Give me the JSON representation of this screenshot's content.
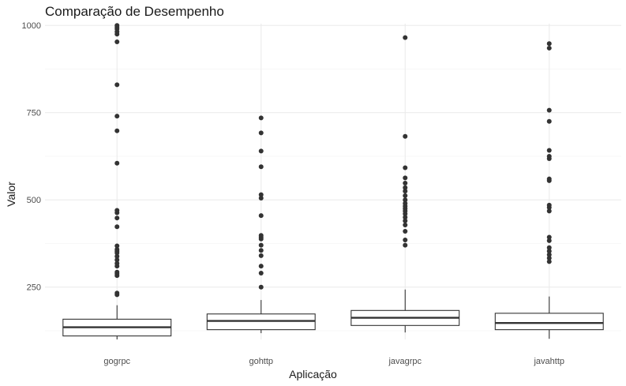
{
  "chart_data": {
    "type": "boxplot",
    "title": "Comparação de Desempenho",
    "xlabel": "Aplicação",
    "ylabel": "Valor",
    "categories": [
      "gogrpc",
      "gohttp",
      "javagrpc",
      "javahttp"
    ],
    "yticks": [
      250,
      500,
      750,
      1000
    ],
    "ylim": [
      100,
      1005
    ],
    "grid": true,
    "boxes": [
      {
        "category": "gogrpc",
        "whisker_low": 100,
        "q1": 110,
        "median": 135,
        "q3": 158,
        "whisker_high": 198,
        "outliers": [
          228,
          233,
          283,
          288,
          293,
          310,
          318,
          328,
          338,
          348,
          353,
          358,
          368,
          423,
          448,
          463,
          470,
          605,
          698,
          740,
          830,
          953,
          975,
          982,
          990,
          995,
          1000
        ]
      },
      {
        "category": "gohttp",
        "whisker_low": 118,
        "q1": 128,
        "median": 153,
        "q3": 173,
        "whisker_high": 213,
        "outliers": [
          250,
          290,
          310,
          340,
          355,
          370,
          388,
          393,
          398,
          455,
          505,
          515,
          595,
          640,
          692,
          735
        ]
      },
      {
        "category": "javagrpc",
        "whisker_low": 120,
        "q1": 140,
        "median": 162,
        "q3": 183,
        "whisker_high": 243,
        "outliers": [
          370,
          385,
          410,
          428,
          440,
          450,
          460,
          468,
          475,
          482,
          490,
          500,
          512,
          525,
          535,
          548,
          563,
          592,
          682,
          965
        ]
      },
      {
        "category": "javahttp",
        "whisker_low": 102,
        "q1": 128,
        "median": 147,
        "q3": 175,
        "whisker_high": 223,
        "outliers": [
          323,
          333,
          343,
          353,
          363,
          383,
          393,
          468,
          478,
          485,
          555,
          560,
          618,
          625,
          642,
          725,
          757,
          935,
          948
        ]
      }
    ]
  },
  "colors": {
    "grid_major": "#ebebeb",
    "grid_minor": "#f4f4f4",
    "box_stroke": "#333333",
    "point": "#333333",
    "text": "#1a1a1a",
    "tick_text": "#4d4d4d"
  }
}
